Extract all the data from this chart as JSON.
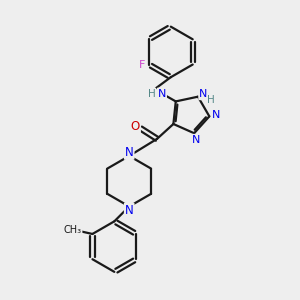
{
  "bg_color": "#eeeeee",
  "bond_color": "#1a1a1a",
  "N_color": "#0000ee",
  "O_color": "#cc0000",
  "F_color": "#cc44cc",
  "NH_color": "#558888",
  "line_width": 1.6,
  "fig_size": [
    3.0,
    3.0
  ],
  "dpi": 100,
  "xlim": [
    0,
    10
  ],
  "ylim": [
    0,
    10
  ]
}
